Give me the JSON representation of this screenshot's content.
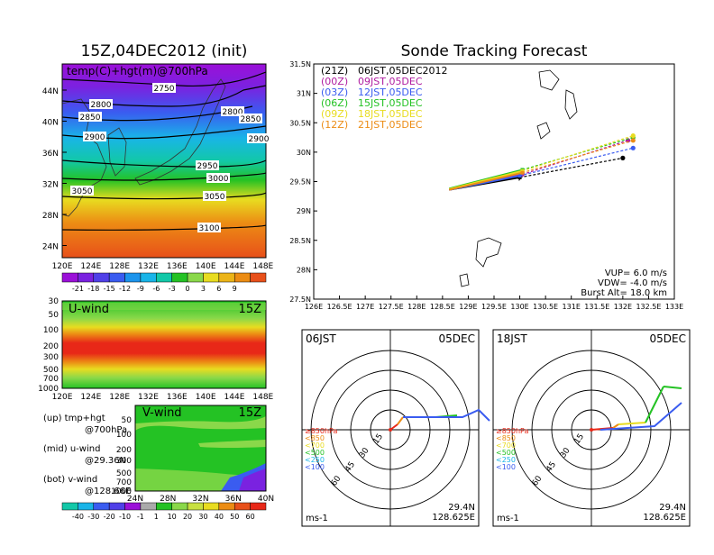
{
  "colors": {
    "purple": "#9b10d8",
    "blue": "#3a5cf0",
    "cyan": "#19b4e8",
    "teal": "#12c8a8",
    "green": "#24c224",
    "lgreen": "#8ad84a",
    "yellow": "#e8dc20",
    "orange": "#ec8c14",
    "red": "#e82818",
    "pink": "#e8287c",
    "magenta": "#b01ca0"
  },
  "left": {
    "title": "15Z,04DEC2012 (init)",
    "map_caption": "temp(C)+hgt(m)@700hPa",
    "lat_labels": [
      "44N",
      "40N",
      "36N",
      "32N",
      "28N",
      "24N"
    ],
    "lon_labels": [
      "120E",
      "124E",
      "128E",
      "132E",
      "136E",
      "140E",
      "144E",
      "148E"
    ],
    "contour_labels": [
      "2750",
      "2800",
      "2800",
      "2850",
      "2850",
      "2900",
      "2900",
      "2950",
      "3000",
      "3050",
      "3050",
      "3100"
    ],
    "temp_colorbar": [
      "-21",
      "-18",
      "-15",
      "-12",
      "-9",
      "-6",
      "-3",
      "0",
      "3",
      "6",
      "9"
    ],
    "u_panel": {
      "title": "U-wind",
      "time": "15Z",
      "levels": [
        "30",
        "50",
        "100",
        "200",
        "300",
        "500",
        "700",
        "1000"
      ],
      "lon_labels": [
        "120E",
        "124E",
        "128E",
        "132E",
        "136E",
        "140E",
        "144E",
        "148E"
      ]
    },
    "v_panel": {
      "title": "V-wind",
      "time": "15Z",
      "levels": [
        "50",
        "100",
        "200",
        "300",
        "500",
        "700",
        "1000"
      ],
      "lat_labels": [
        "24N",
        "28N",
        "32N",
        "36N",
        "40N"
      ]
    },
    "notes": [
      {
        "a": "(up) tmp+hgt",
        "b": "@700hPa"
      },
      {
        "a": "(mid) u-wind",
        "b": "@29.36N"
      },
      {
        "a": "(bot) v-wind",
        "b": "@128.66E"
      }
    ],
    "wind_colorbar": [
      "-40",
      "-30",
      "-20",
      "-10",
      "-1",
      "1",
      "10",
      "20",
      "30",
      "40",
      "50",
      "60"
    ]
  },
  "chart_data": [
    {
      "type": "line",
      "title": "Sonde Tracking Forecast",
      "xlim": [
        126,
        133
      ],
      "ylim": [
        27.5,
        31.5
      ],
      "x_ticks": [
        "126E",
        "126.5E",
        "127E",
        "127.5E",
        "128E",
        "128.5E",
        "129E",
        "129.5E",
        "130E",
        "130.5E",
        "131E",
        "131.5E",
        "132E",
        "132.5E",
        "133E"
      ],
      "y_ticks": [
        "31.5N",
        "31N",
        "30.5N",
        "30N",
        "29.5N",
        "29N",
        "28.5N",
        "28N",
        "27.5N"
      ],
      "legend": [
        {
          "code": "(21Z)",
          "label": "06JST,05DEC2012",
          "color": "#000000"
        },
        {
          "code": "(00Z)",
          "label": "09JST,05DEC",
          "color": "#b01ca0"
        },
        {
          "code": "(03Z)",
          "label": "12JST,05DEC",
          "color": "#3a5cf0"
        },
        {
          "code": "(06Z)",
          "label": "15JST,05DEC",
          "color": "#24c224"
        },
        {
          "code": "(09Z)",
          "label": "18JST,05DEC",
          "color": "#e8dc20"
        },
        {
          "code": "(12Z)",
          "label": "21JST,05DEC",
          "color": "#ec8c14"
        }
      ],
      "series": [
        {
          "color": "#000000",
          "points": [
            [
              128.63,
              29.36
            ],
            [
              130.0,
              29.57
            ],
            [
              132.0,
              29.9
            ]
          ]
        },
        {
          "color": "#b01ca0",
          "points": [
            [
              128.63,
              29.36
            ],
            [
              130.05,
              29.62
            ],
            [
              132.1,
              30.2
            ]
          ]
        },
        {
          "color": "#3a5cf0",
          "points": [
            [
              128.63,
              29.36
            ],
            [
              130.0,
              29.6
            ],
            [
              132.2,
              30.07
            ]
          ]
        },
        {
          "color": "#24c224",
          "points": [
            [
              128.63,
              29.38
            ],
            [
              130.05,
              29.7
            ],
            [
              132.2,
              30.25
            ]
          ]
        },
        {
          "color": "#e8dc20",
          "points": [
            [
              128.63,
              29.37
            ],
            [
              130.05,
              29.68
            ],
            [
              132.2,
              30.28
            ]
          ]
        },
        {
          "color": "#ec8c14",
          "points": [
            [
              128.63,
              29.36
            ],
            [
              130.05,
              29.65
            ],
            [
              132.2,
              30.2
            ]
          ]
        }
      ],
      "params": [
        "VUP= 6.0 m/s",
        "VDW= -4.0 m/s",
        "Burst Alt= 18.0 km"
      ]
    }
  ],
  "polar": [
    {
      "time": "06JST",
      "date": "05DEC",
      "lat": "29.4N",
      "lon": "128.625E",
      "unit": "ms-1",
      "rings": [
        "15",
        "30",
        "45",
        "60"
      ],
      "levels": [
        {
          "t": "≥850hPa",
          "c": "#e82818"
        },
        {
          "t": "<850",
          "c": "#ec8c14"
        },
        {
          "t": "<700",
          "c": "#e8dc20"
        },
        {
          "t": "<500",
          "c": "#24c224"
        },
        {
          "t": "<250",
          "c": "#19b4e8"
        },
        {
          "t": "<100",
          "c": "#3a5cf0"
        }
      ]
    },
    {
      "time": "18JST",
      "date": "05DEC",
      "lat": "29.4N",
      "lon": "128.625E",
      "unit": "ms-1",
      "rings": [
        "15",
        "30",
        "45",
        "60"
      ],
      "levels": [
        {
          "t": "≥850hPa",
          "c": "#e82818"
        },
        {
          "t": "<850",
          "c": "#ec8c14"
        },
        {
          "t": "<700",
          "c": "#e8dc20"
        },
        {
          "t": "<500",
          "c": "#24c224"
        },
        {
          "t": "<250",
          "c": "#19b4e8"
        },
        {
          "t": "<100",
          "c": "#3a5cf0"
        }
      ]
    }
  ]
}
